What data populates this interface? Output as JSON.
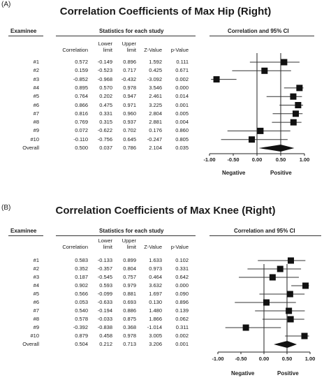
{
  "panels": [
    {
      "label": "(A)",
      "title": "Correlation Coefficients of Max Hip (Right)",
      "header_examinee": "Examinee",
      "header_stats": "Statistics for each study",
      "header_plot": "Correlation and 95% CI",
      "columns": [
        "Correlation",
        "Lower limit",
        "Upper limit",
        "Z-Value",
        "p-Value"
      ],
      "neg_label": "Negative",
      "pos_label": "Positive"
    },
    {
      "label": "(B)",
      "title": "Correlation Coefficients of Max Knee (Right)",
      "header_examinee": "Examinee",
      "header_stats": "Statistics for each study",
      "header_plot": "Correlation and 95% CI",
      "columns": [
        "Correlation",
        "Lower limit",
        "Upper limit",
        "Z-Value",
        "p-Value"
      ],
      "neg_label": "Negative",
      "pos_label": "Positive"
    }
  ],
  "chart_data": [
    {
      "type": "forest",
      "title": "Correlation Coefficients of Max Hip (Right)",
      "xlim": [
        -1.0,
        1.0
      ],
      "xticks": [
        "-1.00",
        "-0.50",
        "0.00",
        "0.50",
        "1.00"
      ],
      "rows": [
        {
          "examinee": "#1",
          "corr": "0.572",
          "lower": "-0.149",
          "upper": "0.896",
          "z": "1.592",
          "p": "0.111",
          "r": 0.572,
          "lo": -0.149,
          "hi": 0.896
        },
        {
          "examinee": "#2",
          "corr": "0.159",
          "lower": "-0.523",
          "upper": "0.717",
          "z": "0.425",
          "p": "0.671",
          "r": 0.159,
          "lo": -0.523,
          "hi": 0.717
        },
        {
          "examinee": "#3",
          "corr": "-0.852",
          "lower": "-0.968",
          "upper": "-0.432",
          "z": "-3.092",
          "p": "0.002",
          "r": -0.852,
          "lo": -0.968,
          "hi": -0.432
        },
        {
          "examinee": "#4",
          "corr": "0.895",
          "lower": "0.570",
          "upper": "0.978",
          "z": "3.546",
          "p": "0.000",
          "r": 0.895,
          "lo": 0.57,
          "hi": 0.978
        },
        {
          "examinee": "#5",
          "corr": "0.764",
          "lower": "0.202",
          "upper": "0.947",
          "z": "2.461",
          "p": "0.014",
          "r": 0.764,
          "lo": 0.202,
          "hi": 0.947
        },
        {
          "examinee": "#6",
          "corr": "0.866",
          "lower": "0.475",
          "upper": "0.971",
          "z": "3.225",
          "p": "0.001",
          "r": 0.866,
          "lo": 0.475,
          "hi": 0.971
        },
        {
          "examinee": "#7",
          "corr": "0.816",
          "lower": "0.331",
          "upper": "0.960",
          "z": "2.804",
          "p": "0.005",
          "r": 0.816,
          "lo": 0.331,
          "hi": 0.96
        },
        {
          "examinee": "#8",
          "corr": "0.769",
          "lower": "0.315",
          "upper": "0.937",
          "z": "2.881",
          "p": "0.004",
          "r": 0.769,
          "lo": 0.315,
          "hi": 0.937
        },
        {
          "examinee": "#9",
          "corr": "0.072",
          "lower": "-0.622",
          "upper": "0.702",
          "z": "0.176",
          "p": "0.860",
          "r": 0.072,
          "lo": -0.622,
          "hi": 0.702
        },
        {
          "examinee": "#10",
          "corr": "-0.110",
          "lower": "-0.756",
          "upper": "0.645",
          "z": "-0.247",
          "p": "0.805",
          "r": -0.11,
          "lo": -0.756,
          "hi": 0.645
        }
      ],
      "overall": {
        "examinee": "Overall",
        "corr": "0.500",
        "lower": "0.037",
        "upper": "0.786",
        "z": "2.104",
        "p": "0.035",
        "r": 0.5,
        "lo": 0.037,
        "hi": 0.786
      }
    },
    {
      "type": "forest",
      "title": "Correlation Coefficients of Max Knee (Right)",
      "xlim": [
        -1.0,
        1.0
      ],
      "xticks": [
        "-1.00",
        "-0.50",
        "0.00",
        "0.50",
        "1.00"
      ],
      "rows": [
        {
          "examinee": "#1",
          "corr": "0.583",
          "lower": "-0.133",
          "upper": "0.899",
          "z": "1.633",
          "p": "0.102",
          "r": 0.583,
          "lo": -0.133,
          "hi": 0.899
        },
        {
          "examinee": "#2",
          "corr": "0.352",
          "lower": "-0.357",
          "upper": "0.804",
          "z": "0.973",
          "p": "0.331",
          "r": 0.352,
          "lo": -0.357,
          "hi": 0.804
        },
        {
          "examinee": "#3",
          "corr": "0.187",
          "lower": "-0.545",
          "upper": "0.757",
          "z": "0.464",
          "p": "0.642",
          "r": 0.187,
          "lo": -0.545,
          "hi": 0.757
        },
        {
          "examinee": "#4",
          "corr": "0.902",
          "lower": "0.593",
          "upper": "0.979",
          "z": "3.632",
          "p": "0.000",
          "r": 0.902,
          "lo": 0.593,
          "hi": 0.979
        },
        {
          "examinee": "#5",
          "corr": "0.566",
          "lower": "-0.099",
          "upper": "0.881",
          "z": "1.697",
          "p": "0.090",
          "r": 0.566,
          "lo": -0.099,
          "hi": 0.881
        },
        {
          "examinee": "#6",
          "corr": "0.053",
          "lower": "-0.633",
          "upper": "0.693",
          "z": "0.130",
          "p": "0.896",
          "r": 0.053,
          "lo": -0.633,
          "hi": 0.693
        },
        {
          "examinee": "#7",
          "corr": "0.540",
          "lower": "-0.194",
          "upper": "0.886",
          "z": "1.480",
          "p": "0.139",
          "r": 0.54,
          "lo": -0.194,
          "hi": 0.886
        },
        {
          "examinee": "#8",
          "corr": "0.578",
          "lower": "-0.033",
          "upper": "0.875",
          "z": "1.866",
          "p": "0.062",
          "r": 0.578,
          "lo": -0.033,
          "hi": 0.875
        },
        {
          "examinee": "#9",
          "corr": "-0.392",
          "lower": "-0.838",
          "upper": "0.368",
          "z": "-1.014",
          "p": "0.311",
          "r": -0.392,
          "lo": -0.838,
          "hi": 0.368
        },
        {
          "examinee": "#10",
          "corr": "0.879",
          "lower": "0.458",
          "upper": "0.978",
          "z": "3.005",
          "p": "0.002",
          "r": 0.879,
          "lo": 0.458,
          "hi": 0.978
        }
      ],
      "overall": {
        "examinee": "Overall",
        "corr": "0.504",
        "lower": "0.212",
        "upper": "0.713",
        "z": "3.206",
        "p": "0.001",
        "r": 0.504,
        "lo": 0.212,
        "hi": 0.713
      }
    }
  ]
}
